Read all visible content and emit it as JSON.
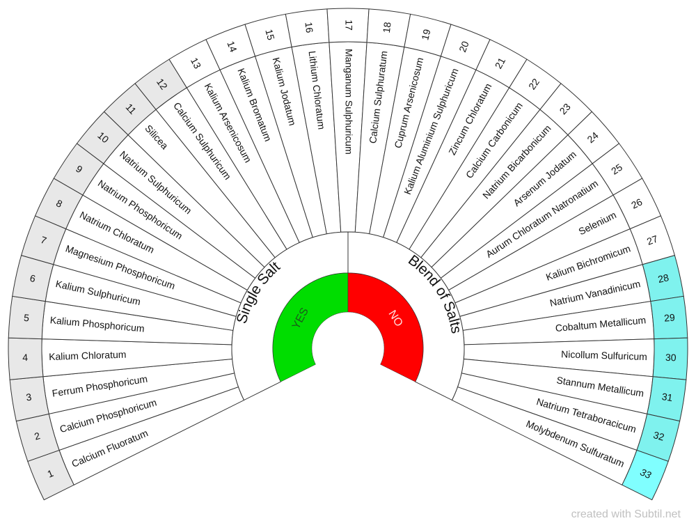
{
  "segments": [
    {
      "number": 1,
      "label": "Calcium Fluoratum",
      "fill": "#e8e8e8"
    },
    {
      "number": 2,
      "label": "Calcium Phosphoricum",
      "fill": "#e8e8e8"
    },
    {
      "number": 3,
      "label": "Ferrum Phosphoricum",
      "fill": "#e8e8e8"
    },
    {
      "number": 4,
      "label": "Kalium Chloratum",
      "fill": "#e8e8e8"
    },
    {
      "number": 5,
      "label": "Kalium Phosphoricum",
      "fill": "#e8e8e8"
    },
    {
      "number": 6,
      "label": "Kalium Sulphuricum",
      "fill": "#e8e8e8"
    },
    {
      "number": 7,
      "label": "Magnesium Phosphoricum",
      "fill": "#e8e8e8"
    },
    {
      "number": 8,
      "label": "Natrium Chloratum",
      "fill": "#e8e8e8"
    },
    {
      "number": 9,
      "label": "Natrium Phosphoricum",
      "fill": "#e8e8e8"
    },
    {
      "number": 10,
      "label": "Natrium Sulphuricum",
      "fill": "#e8e8e8"
    },
    {
      "number": 11,
      "label": "Silicea",
      "fill": "#e8e8e8"
    },
    {
      "number": 12,
      "label": "Calcium Sulphuricum",
      "fill": "#e8e8e8"
    },
    {
      "number": 13,
      "label": "Kalium Arsenicosum",
      "fill": "#ffffff"
    },
    {
      "number": 14,
      "label": "Kalium Bromatum",
      "fill": "#ffffff"
    },
    {
      "number": 15,
      "label": "Kalium Jodatum",
      "fill": "#ffffff"
    },
    {
      "number": 16,
      "label": "Lithium Chloratum",
      "fill": "#ffffff"
    },
    {
      "number": 17,
      "label": "Manganum Sulphuricum",
      "fill": "#ffffff"
    },
    {
      "number": 18,
      "label": "Calcium Sulphuratum",
      "fill": "#ffffff"
    },
    {
      "number": 19,
      "label": "Cuprum Arsenicosum",
      "fill": "#ffffff"
    },
    {
      "number": 20,
      "label": "Kalium Aluminium Sulphuricum",
      "fill": "#ffffff"
    },
    {
      "number": 21,
      "label": "Zincum Chloratum",
      "fill": "#ffffff"
    },
    {
      "number": 22,
      "label": "Calcium Carbonicum",
      "fill": "#ffffff"
    },
    {
      "number": 23,
      "label": "Natrium Bicarbonicum",
      "fill": "#ffffff"
    },
    {
      "number": 24,
      "label": "Arsenum Jodatum",
      "fill": "#ffffff"
    },
    {
      "number": 25,
      "label": "Aurum Chloratum Natronatium",
      "fill": "#ffffff"
    },
    {
      "number": 26,
      "label": "Selenium",
      "fill": "#ffffff"
    },
    {
      "number": 27,
      "label": "Kalium Bichromicum",
      "fill": "#ffffff"
    },
    {
      "number": 28,
      "label": "Natrium Vanadinicum",
      "fill": "#7ff2ee"
    },
    {
      "number": 29,
      "label": "Cobaltum Metallicum",
      "fill": "#7ff2ee"
    },
    {
      "number": 30,
      "label": "Nicollum Sulfuricum",
      "fill": "#7ff2ee"
    },
    {
      "number": 31,
      "label": "Stannum Metallicum",
      "fill": "#7ff2ee"
    },
    {
      "number": 32,
      "label": "Natrium Tetraboracicum",
      "fill": "#7ff2ee"
    },
    {
      "number": 33,
      "label": "Molybdenum Sulfuratum",
      "fill": "#80ffff"
    }
  ],
  "inner": {
    "left": "Single Salt",
    "right": "Blend of Salts"
  },
  "answers": {
    "yes": {
      "label": "YES",
      "fill": "#00dd00"
    },
    "no": {
      "label": "NO",
      "fill": "#ff0000"
    }
  },
  "footer": "created with Subtil.net"
}
